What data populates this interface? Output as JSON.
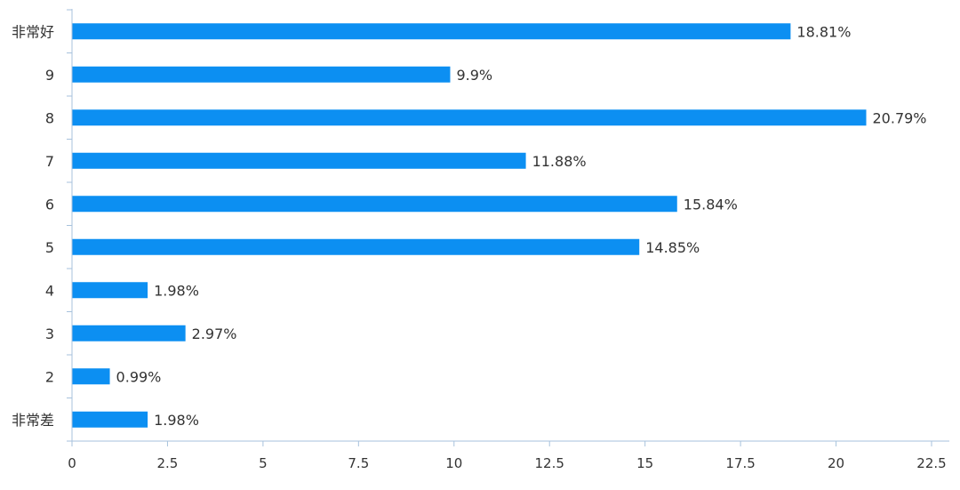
{
  "chart_data": {
    "type": "bar",
    "orientation": "horizontal",
    "title": "",
    "xlabel": "",
    "ylabel": "",
    "categories": [
      "非常好",
      "9",
      "8",
      "7",
      "6",
      "5",
      "4",
      "3",
      "2",
      "非常差"
    ],
    "values": [
      18.81,
      9.9,
      20.79,
      11.88,
      15.84,
      14.85,
      1.98,
      2.97,
      0.99,
      1.98
    ],
    "value_labels": [
      "18.81%",
      "9.9%",
      "20.79%",
      "11.88%",
      "15.84%",
      "14.85%",
      "1.98%",
      "2.97%",
      "0.99%",
      "1.98%"
    ],
    "xlim": [
      0,
      22.5
    ],
    "x_ticks": [
      "0",
      "2.5",
      "5",
      "7.5",
      "10",
      "12.5",
      "15",
      "17.5",
      "20",
      "22.5"
    ],
    "grid": false,
    "colors": {
      "bar": "#0c8ff2",
      "axis": "#a7c2dc",
      "text": "#333333",
      "background": "#ffffff"
    }
  }
}
